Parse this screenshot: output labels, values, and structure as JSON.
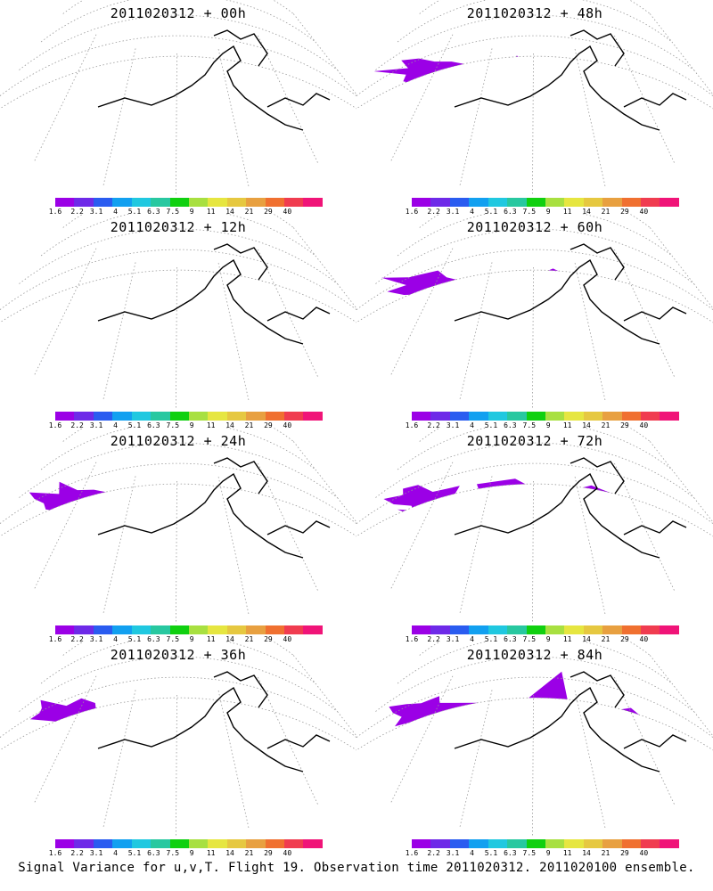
{
  "caption": "Signal Variance for u,v,T. Flight 19. Observation time 2011020312. 2011020100 ensemble.",
  "colorbar": {
    "colors": [
      "#9b00e6",
      "#6e2ae8",
      "#2a5cf0",
      "#12a0f0",
      "#20c8e0",
      "#28c8a0",
      "#10d010",
      "#a8e040",
      "#e6e640",
      "#e6c840",
      "#e8a040",
      "#f07030",
      "#f03c50",
      "#f01478"
    ],
    "labels": [
      "1.6",
      "2.2",
      "3.1",
      "4",
      "5.1",
      "6.3",
      "7.5",
      "9",
      "11",
      "14",
      "21",
      "29",
      "40"
    ]
  },
  "panels": [
    {
      "title": "2011020312 + 00h",
      "intensity": 0
    },
    {
      "title": "2011020312 + 48h",
      "intensity": 4
    },
    {
      "title": "2011020312 + 12h",
      "intensity": 1
    },
    {
      "title": "2011020312 + 60h",
      "intensity": 5
    },
    {
      "title": "2011020312 + 24h",
      "intensity": 2
    },
    {
      "title": "2011020312 + 72h",
      "intensity": 6
    },
    {
      "title": "2011020312 + 36h",
      "intensity": 3
    },
    {
      "title": "2011020312 + 84h",
      "intensity": 7
    }
  ]
}
